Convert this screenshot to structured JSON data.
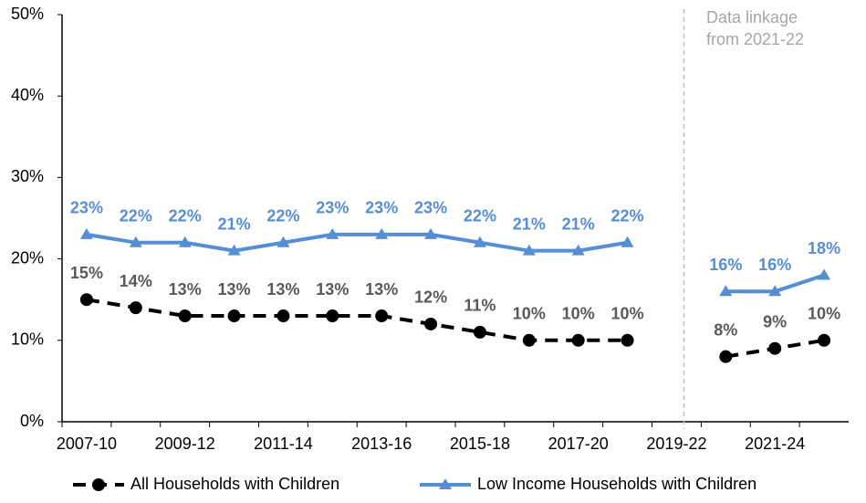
{
  "chart_data": {
    "type": "line",
    "categories": [
      "2007-10",
      null,
      "2009-12",
      null,
      "2011-14",
      null,
      "2013-16",
      null,
      "2015-18",
      null,
      "2017-20",
      null,
      "2019-22",
      null,
      "2021-24",
      null
    ],
    "series": [
      {
        "name": "All Households with Children",
        "color": "#000000",
        "label_color": "#595959",
        "dash": true,
        "marker": "circle",
        "values": [
          15,
          14,
          13,
          13,
          13,
          13,
          13,
          12,
          11,
          10,
          10,
          10,
          null,
          8,
          9,
          10
        ],
        "value_labels": [
          "15%",
          "14%",
          "13%",
          "13%",
          "13%",
          "13%",
          "13%",
          "12%",
          "11%",
          "10%",
          "10%",
          "10%",
          null,
          "8%",
          "9%",
          "10%"
        ]
      },
      {
        "name": "Low Income Households with Children",
        "color": "#558ed5",
        "label_color": "#558ed5",
        "dash": false,
        "marker": "triangle",
        "values": [
          23,
          22,
          22,
          21,
          22,
          23,
          23,
          23,
          22,
          21,
          21,
          22,
          null,
          16,
          16,
          18
        ],
        "value_labels": [
          "23%",
          "22%",
          "22%",
          "21%",
          "22%",
          "23%",
          "23%",
          "23%",
          "22%",
          "21%",
          "21%",
          "22%",
          null,
          "16%",
          "16%",
          "18%"
        ]
      }
    ],
    "annotations": [
      "Data linkage",
      "from 2021-22"
    ],
    "ylim": [
      0,
      50
    ],
    "yticks": [
      {
        "value": 0,
        "label": "0%"
      },
      {
        "value": 10,
        "label": "10%"
      },
      {
        "value": 20,
        "label": "20%"
      },
      {
        "value": 30,
        "label": "30%"
      },
      {
        "value": 40,
        "label": "40%"
      },
      {
        "value": 50,
        "label": "50%"
      }
    ],
    "legend": "bottom"
  }
}
